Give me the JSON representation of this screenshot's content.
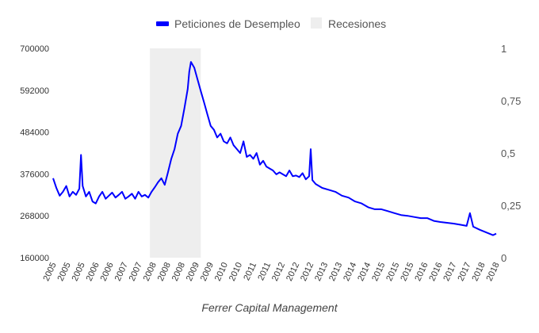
{
  "chart_data": {
    "type": "line",
    "title": "",
    "xlabel": "",
    "ylabel": "",
    "caption": "Ferrer Capital Management",
    "legend": {
      "placement": "top-center",
      "entries": [
        {
          "label": "Peticiones de Desempleo",
          "color": "#0000ff",
          "kind": "line"
        },
        {
          "label": "Recesiones",
          "color": "#eeeeee",
          "kind": "area"
        }
      ]
    },
    "y_left": {
      "ylim": [
        160000,
        700000
      ],
      "ticks": [
        "160000",
        "268000",
        "376000",
        "484000",
        "592000",
        "700000"
      ]
    },
    "y_right": {
      "ylim": [
        0,
        1
      ],
      "ticks": [
        "0",
        "0,25",
        "0,5",
        "0,75",
        "1"
      ]
    },
    "x": {
      "xlim": [
        2005.0,
        2018.5
      ],
      "tick_labels": [
        "2005",
        "2005",
        "2005",
        "2006",
        "2006",
        "2007",
        "2007",
        "2008",
        "2008",
        "2008",
        "2009",
        "2009",
        "2010",
        "2010",
        "2011",
        "2011",
        "2012",
        "2012",
        "2012",
        "2013",
        "2013",
        "2014",
        "2014",
        "2015",
        "2015",
        "2015",
        "2016",
        "2016",
        "2017",
        "2017",
        "2018",
        "2018"
      ]
    },
    "recession": {
      "start": 2007.95,
      "end": 2009.5,
      "value": 1
    },
    "series": [
      {
        "name": "Peticiones de Desempleo",
        "color": "#0000ff",
        "x": [
          2005.0,
          2005.1,
          2005.2,
          2005.3,
          2005.4,
          2005.5,
          2005.6,
          2005.7,
          2005.8,
          2005.85,
          2005.9,
          2006.0,
          2006.1,
          2006.2,
          2006.3,
          2006.4,
          2006.5,
          2006.6,
          2006.7,
          2006.8,
          2006.9,
          2007.0,
          2007.1,
          2007.2,
          2007.3,
          2007.4,
          2007.5,
          2007.6,
          2007.7,
          2007.8,
          2007.9,
          2008.0,
          2008.1,
          2008.2,
          2008.3,
          2008.4,
          2008.5,
          2008.6,
          2008.7,
          2008.8,
          2008.9,
          2009.0,
          2009.1,
          2009.15,
          2009.2,
          2009.3,
          2009.4,
          2009.5,
          2009.6,
          2009.7,
          2009.8,
          2009.9,
          2010.0,
          2010.1,
          2010.2,
          2010.3,
          2010.4,
          2010.5,
          2010.6,
          2010.7,
          2010.8,
          2010.9,
          2011.0,
          2011.1,
          2011.2,
          2011.3,
          2011.4,
          2011.5,
          2011.6,
          2011.7,
          2011.8,
          2011.9,
          2012.0,
          2012.1,
          2012.2,
          2012.3,
          2012.4,
          2012.5,
          2012.6,
          2012.7,
          2012.8,
          2012.85,
          2012.9,
          2013.0,
          2013.2,
          2013.4,
          2013.6,
          2013.8,
          2014.0,
          2014.2,
          2014.4,
          2014.6,
          2014.8,
          2015.0,
          2015.2,
          2015.4,
          2015.6,
          2015.8,
          2016.0,
          2016.2,
          2016.4,
          2016.6,
          2016.8,
          2017.0,
          2017.2,
          2017.4,
          2017.6,
          2017.7,
          2017.8,
          2018.0,
          2018.2,
          2018.4,
          2018.5
        ],
        "values": [
          365000,
          340000,
          320000,
          330000,
          345000,
          318000,
          330000,
          322000,
          338000,
          425000,
          345000,
          318000,
          330000,
          305000,
          300000,
          318000,
          330000,
          312000,
          320000,
          328000,
          315000,
          322000,
          330000,
          312000,
          318000,
          325000,
          312000,
          330000,
          318000,
          322000,
          315000,
          330000,
          342000,
          355000,
          365000,
          348000,
          380000,
          415000,
          440000,
          480000,
          500000,
          545000,
          595000,
          640000,
          665000,
          650000,
          620000,
          590000,
          560000,
          530000,
          500000,
          490000,
          470000,
          480000,
          460000,
          455000,
          470000,
          450000,
          440000,
          430000,
          460000,
          420000,
          425000,
          415000,
          430000,
          400000,
          410000,
          395000,
          390000,
          385000,
          375000,
          380000,
          375000,
          370000,
          385000,
          370000,
          372000,
          368000,
          378000,
          362000,
          370000,
          440000,
          360000,
          350000,
          340000,
          335000,
          330000,
          320000,
          315000,
          305000,
          300000,
          290000,
          285000,
          285000,
          280000,
          275000,
          270000,
          268000,
          265000,
          262000,
          262000,
          255000,
          252000,
          250000,
          248000,
          245000,
          242000,
          275000,
          240000,
          232000,
          225000,
          218000,
          222000
        ]
      }
    ]
  }
}
